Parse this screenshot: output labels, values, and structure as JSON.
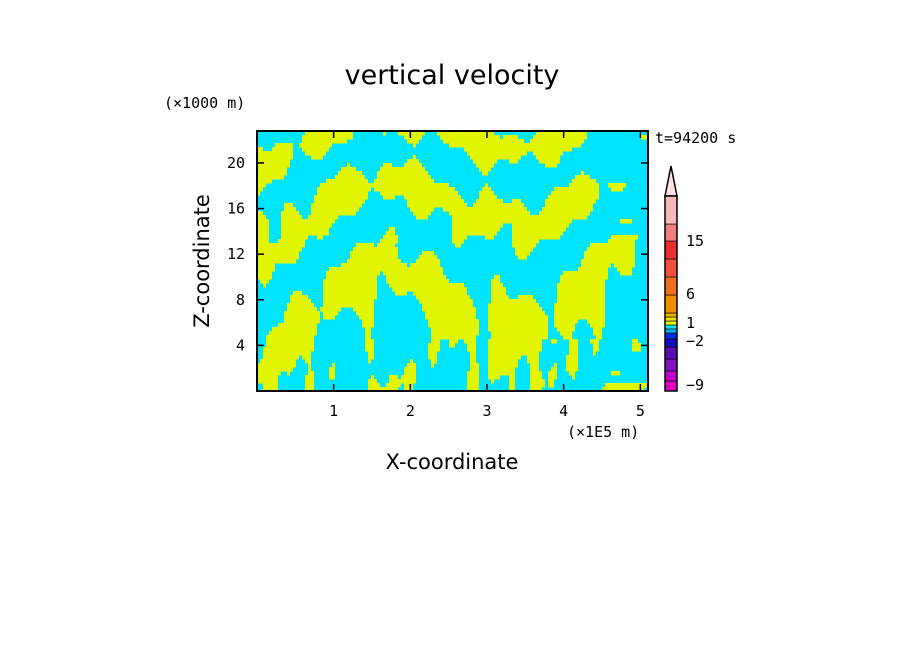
{
  "chart_data": {
    "type": "heatmap",
    "title": "vertical velocity",
    "time_label": "t=94200 s",
    "xlabel": "X-coordinate",
    "ylabel": "Z-coordinate",
    "x_unit": "(×1E5 m)",
    "y_unit": "(×1000 m)",
    "xlim": [
      0,
      5.1
    ],
    "ylim": [
      0,
      22.8
    ],
    "x_ticks": [
      "1",
      "2",
      "3",
      "4",
      "5"
    ],
    "y_ticks": [
      "4",
      "8",
      "12",
      "16",
      "20"
    ],
    "field_colors": {
      "negative": "#00e5ff",
      "positive": "#e2f500"
    },
    "colorbar": {
      "levels_bottom_to_top": [
        {
          "color": "#e000c0"
        },
        {
          "color": "#c000c8"
        },
        {
          "color": "#8010c0"
        },
        {
          "color": "#5a10b0"
        },
        {
          "color": "#1010c0"
        },
        {
          "color": "#0030e0"
        },
        {
          "color": "#00b0f0"
        },
        {
          "color": "#00e5ff"
        },
        {
          "color": "#e2f500"
        },
        {
          "color": "#f0e000"
        },
        {
          "color": "#f0b000"
        },
        {
          "color": "#f09000"
        },
        {
          "color": "#f07020"
        },
        {
          "color": "#f05040"
        },
        {
          "color": "#e83030"
        },
        {
          "color": "#f08080"
        },
        {
          "color": "#f8b8b8"
        }
      ],
      "labels": [
        "15",
        "6",
        "1",
        "−2",
        "−9"
      ]
    }
  }
}
